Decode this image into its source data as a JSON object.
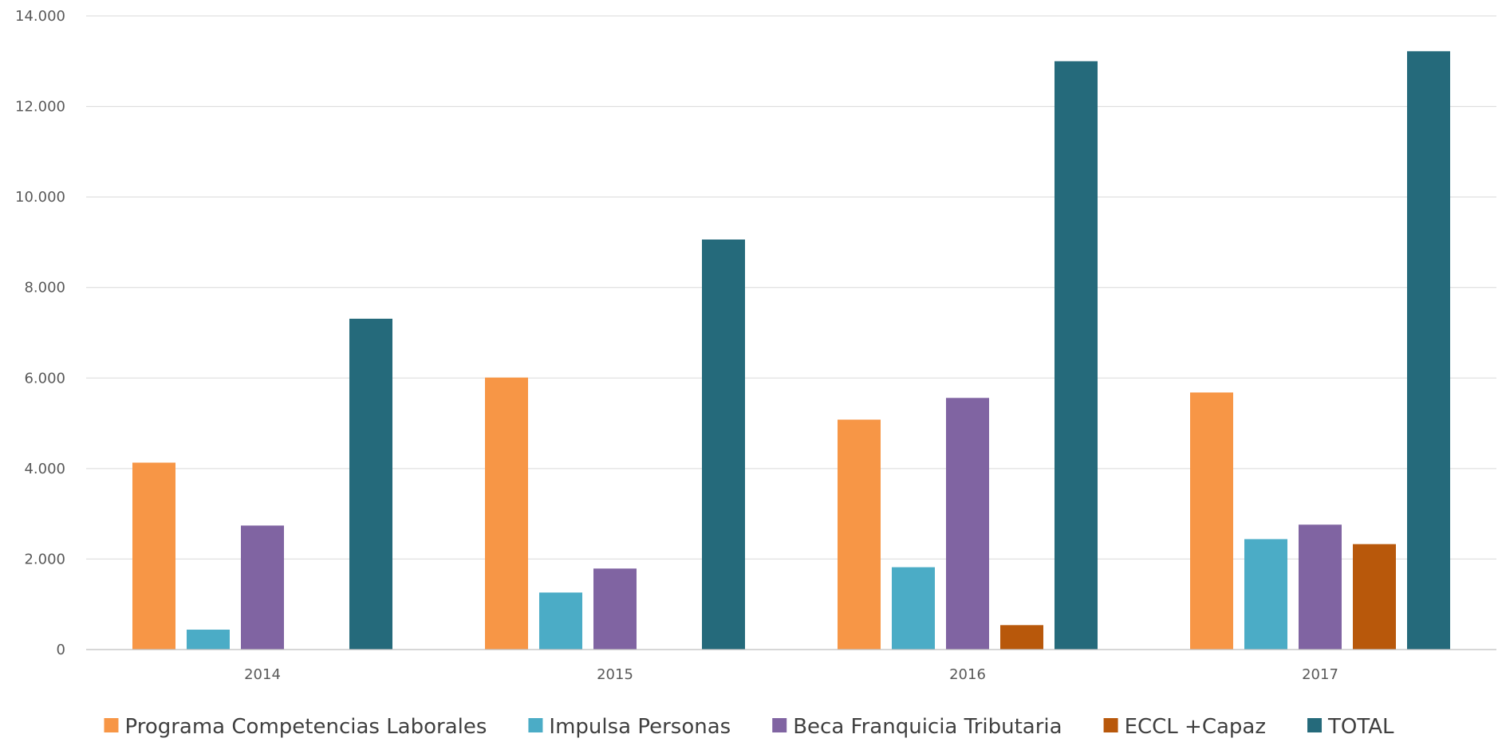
{
  "chart_data": {
    "type": "bar",
    "title": "",
    "xlabel": "",
    "ylabel": "",
    "categories": [
      "2014",
      "2015",
      "2016",
      "2017"
    ],
    "ylim": [
      0,
      14000
    ],
    "yticks": [
      0,
      2000,
      4000,
      6000,
      8000,
      10000,
      12000,
      14000
    ],
    "ytick_labels": [
      "0",
      "2.000",
      "4.000",
      "6.000",
      "8.000",
      "10.000",
      "12.000",
      "14.000"
    ],
    "grid": true,
    "legend_position": "bottom",
    "series": [
      {
        "name": "Programa Competencias Laborales",
        "color": "#F79646",
        "values": [
          4130,
          6010,
          5080,
          5680
        ]
      },
      {
        "name": "Impulsa Personas",
        "color": "#4BACC6",
        "values": [
          440,
          1260,
          1820,
          2440
        ]
      },
      {
        "name": "Beca Franquicia Tributaria",
        "color": "#8064A2",
        "values": [
          2740,
          1790,
          5560,
          2760
        ]
      },
      {
        "name": "ECCL +Capaz",
        "color": "#B8580B",
        "values": [
          0,
          0,
          540,
          2330
        ]
      },
      {
        "name": "TOTAL",
        "color": "#256A7B",
        "values": [
          7310,
          9060,
          13000,
          13220
        ]
      }
    ]
  }
}
